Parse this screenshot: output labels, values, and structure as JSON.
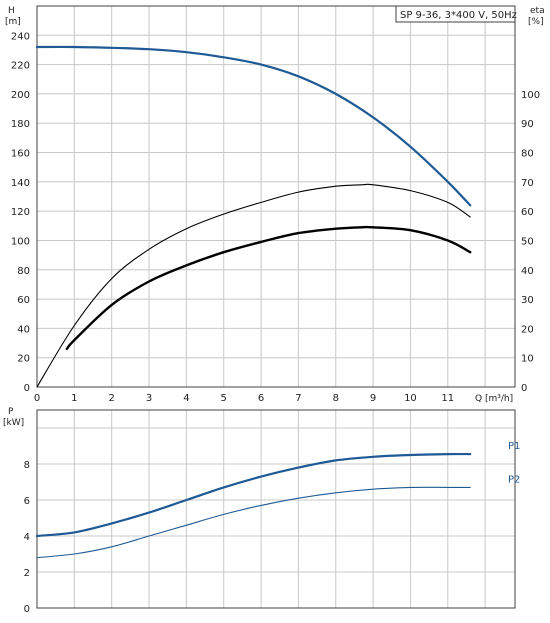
{
  "title": "SP 9-36, 3*400 V, 50Hz",
  "colors": {
    "blue": "#1f5a96",
    "black": "#000000",
    "grid": "#c8c8c8",
    "axis": "#404040"
  },
  "chart_data": [
    {
      "type": "line",
      "name": "head-efficiency",
      "ylabel": "H",
      "yunit": "[m]",
      "y2label": "eta",
      "y2unit": "[%]",
      "xlabel": "Q [m³/h]",
      "xlim": [
        0,
        12.8
      ],
      "ylim": [
        0,
        260
      ],
      "y2lim": [
        0,
        130
      ],
      "x_ticks": [
        "0",
        "1",
        "2",
        "3",
        "4",
        "5",
        "6",
        "7",
        "8",
        "9",
        "10",
        "11"
      ],
      "y_ticks": [
        "0",
        "20",
        "40",
        "60",
        "80",
        "100",
        "120",
        "140",
        "160",
        "180",
        "200",
        "220",
        "240"
      ],
      "y2_ticks": [
        "0",
        "10",
        "20",
        "30",
        "40",
        "50",
        "60",
        "70",
        "80",
        "90",
        "100"
      ],
      "grid": true,
      "series": [
        {
          "key": "H",
          "axis": "left",
          "color": "#1f5a96",
          "width": 2.2,
          "x": [
            0,
            1,
            2,
            3,
            4,
            5,
            6,
            7,
            8,
            9,
            10,
            11,
            11.6
          ],
          "y": [
            232,
            232,
            231.5,
            230.5,
            228.5,
            225,
            220,
            212,
            200,
            184,
            164,
            140,
            124
          ]
        },
        {
          "key": "eta",
          "axis": "right",
          "color": "#000000",
          "width": 1.1,
          "x": [
            0,
            1,
            2,
            3,
            4,
            5,
            6,
            7,
            8,
            8.7,
            9,
            10,
            11,
            11.6
          ],
          "y": [
            0,
            21,
            37,
            47,
            54,
            59,
            63,
            66.5,
            68.5,
            69,
            69,
            67,
            63,
            58
          ]
        },
        {
          "key": "eta2",
          "axis": "right",
          "color": "#000000",
          "width": 2.4,
          "x": [
            0.8,
            1,
            2,
            3,
            4,
            5,
            6,
            7,
            8,
            8.7,
            9,
            10,
            11,
            11.6
          ],
          "y": [
            13,
            16,
            28,
            36,
            41.5,
            46,
            49.5,
            52.5,
            54,
            54.5,
            54.5,
            53.5,
            50,
            46
          ]
        }
      ]
    },
    {
      "type": "line",
      "name": "power",
      "ylabel": "P",
      "yunit": "[kW]",
      "xlim": [
        0,
        12.8
      ],
      "ylim": [
        0,
        11
      ],
      "y_ticks": [
        "0",
        "2",
        "4",
        "6",
        "8"
      ],
      "grid": true,
      "series": [
        {
          "key": "P1",
          "label": "P1",
          "color": "#1f5a96",
          "width": 2.2,
          "x": [
            0,
            1,
            2,
            3,
            4,
            5,
            6,
            7,
            8,
            9,
            10,
            11,
            11.6
          ],
          "y": [
            4.0,
            4.2,
            4.7,
            5.3,
            6.0,
            6.7,
            7.3,
            7.8,
            8.2,
            8.4,
            8.5,
            8.55,
            8.55
          ]
        },
        {
          "key": "P2",
          "label": "P2",
          "color": "#1f5a96",
          "width": 1.1,
          "x": [
            0,
            1,
            2,
            3,
            4,
            5,
            6,
            7,
            8,
            9,
            10,
            11,
            11.6
          ],
          "y": [
            2.8,
            3.0,
            3.4,
            4.0,
            4.6,
            5.2,
            5.7,
            6.1,
            6.4,
            6.6,
            6.7,
            6.7,
            6.7
          ]
        }
      ]
    }
  ]
}
